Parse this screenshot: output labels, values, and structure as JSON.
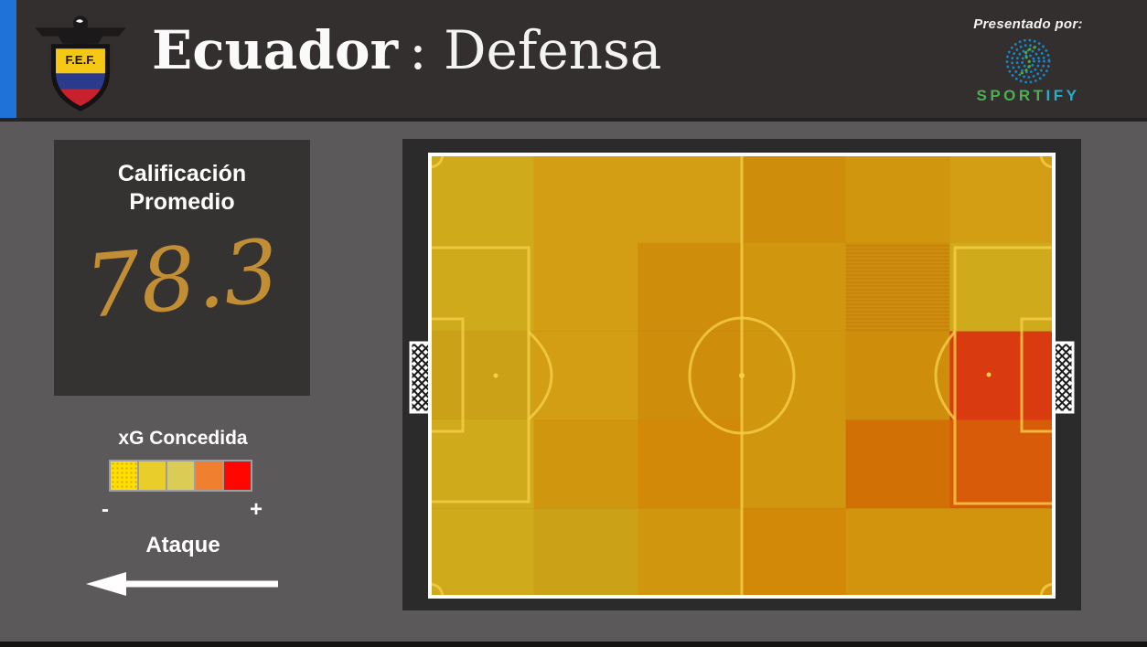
{
  "header": {
    "title_team": "Ecuador",
    "title_rest": ": Defensa",
    "presented_by": "Presentado por:",
    "brand_green": "SPORT",
    "brand_blue": "IFY"
  },
  "crest": {
    "acronym": "F.E.F."
  },
  "panel": {
    "title_line1": "Calificación",
    "title_line2": "Promedio",
    "value": "78.3"
  },
  "legend": {
    "title": "xG Concedida",
    "minus": "-",
    "plus": "+"
  },
  "attack": {
    "label": "Ataque"
  },
  "chart_data": {
    "type": "heatmap",
    "title": "Ecuador : Defensa",
    "metric": "xG Concedida",
    "average_rating": 78.3,
    "attack_direction": "left",
    "grid": {
      "rows": 5,
      "cols": 6
    },
    "palette": {
      "y1": "#CFAA1B",
      "y2": "#CBA117",
      "a1": "#D39D14",
      "a2": "#D0960E",
      "a3": "#D2940D",
      "o1": "#CE8D0B",
      "o1s": "#CE8D0B",
      "o2": "#D28908",
      "so": "#D17105",
      "or": "#D75B08",
      "rd": "#D93A10"
    },
    "cells": [
      [
        "y1",
        "a1",
        "a1",
        "o1",
        "a2",
        "a1"
      ],
      [
        "y1",
        "a1",
        "o1",
        "a2",
        "o1s",
        "y1"
      ],
      [
        "y2",
        "a1",
        "o1",
        "a2",
        "o1",
        "rd"
      ],
      [
        "y1",
        "a2",
        "o2",
        "a2",
        "so",
        "or"
      ],
      [
        "y1",
        "y2",
        "a2",
        "o2",
        "a3",
        "a3"
      ]
    ],
    "legend_colors": [
      "#FFDF00",
      "#E9CD2A",
      "#DACC55",
      "#F08030",
      "#FF0600"
    ],
    "legend_scale": [
      "-",
      "+"
    ]
  }
}
